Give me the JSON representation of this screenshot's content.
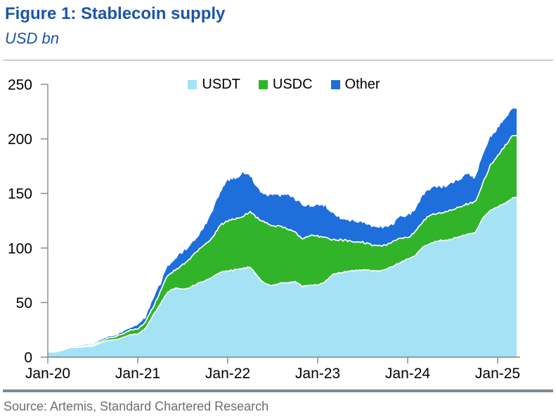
{
  "title": "Figure 1: Stablecoin supply",
  "subtitle": "USD bn",
  "source": "Source: Artemis, Standard Chartered Research",
  "colors": {
    "title_text": "#1B55A9",
    "usdt": "#A4E2F6",
    "usdc": "#31B42A",
    "other": "#1E6EDC",
    "axis": "#7C868E",
    "tick_text": "#000000",
    "separator": "#FFFFFF",
    "source_text": "#6E6E6E",
    "rule": "#7E8993"
  },
  "legend": [
    {
      "label": "USDT",
      "color": "#A4E2F6"
    },
    {
      "label": "USDC",
      "color": "#31B42A"
    },
    {
      "label": "Other",
      "color": "#1E6EDC"
    }
  ],
  "chart_data": {
    "type": "area",
    "stacked": true,
    "title": "Figure 1: Stablecoin supply",
    "ylabel": "USD bn",
    "ylim": [
      0,
      250
    ],
    "y_ticks": [
      0,
      50,
      100,
      150,
      200,
      250
    ],
    "x_start": "Jan-20",
    "x_end": "Mar-25",
    "x_cadence": "monthly",
    "x_tick_labels": [
      "Jan-20",
      "Jan-21",
      "Jan-22",
      "Jan-23",
      "Jan-24",
      "Jan-25"
    ],
    "x_tick_month_index": [
      0,
      12,
      24,
      36,
      48,
      60
    ],
    "legend_position": "top-center",
    "grid": false,
    "series": [
      {
        "name": "USDT",
        "values": [
          4.7,
          4.7,
          6.4,
          8.8,
          8.8,
          9.8,
          10.0,
          13.0,
          15.3,
          15.9,
          17.8,
          20.7,
          21.2,
          26.0,
          38.0,
          48.0,
          60.0,
          62.8,
          61.8,
          64.0,
          68.0,
          70.4,
          73.3,
          78.3,
          79.0,
          80.0,
          81.0,
          83.0,
          74.0,
          67.0,
          66.0,
          67.5,
          68.0,
          69.0,
          65.3,
          66.2,
          66.0,
          69.0,
          76.0,
          78.0,
          79.0,
          79.5,
          80.0,
          79.5,
          79.0,
          80.0,
          83.0,
          87.0,
          89.5,
          93.0,
          100.0,
          105.0,
          107.0,
          107.5,
          109.0,
          111.0,
          113.0,
          114.5,
          127.0,
          135.0,
          138.0,
          141.0,
          146.0
        ]
      },
      {
        "name": "USDC",
        "values": [
          0.5,
          0.4,
          0.7,
          0.7,
          0.7,
          0.9,
          1.1,
          1.4,
          2.2,
          2.8,
          3.5,
          4.0,
          4.5,
          5.9,
          8.0,
          11.0,
          15.0,
          17.5,
          23.0,
          26.0,
          29.0,
          32.0,
          36.0,
          42.4,
          46.0,
          47.0,
          49.0,
          50.0,
          53.0,
          56.0,
          55.0,
          52.0,
          50.0,
          46.0,
          43.0,
          44.5,
          44.0,
          41.0,
          32.0,
          29.5,
          27.5,
          26.0,
          25.0,
          24.0,
          23.0,
          22.5,
          22.5,
          22.5,
          20.0,
          22.0,
          25.0,
          26.0,
          25.5,
          25.5,
          26.0,
          27.0,
          28.0,
          27.5,
          32.0,
          40.0,
          47.0,
          53.0,
          57.0
        ]
      },
      {
        "name": "Other",
        "values": [
          0.3,
          0.3,
          0.4,
          0.5,
          0.5,
          0.6,
          0.7,
          0.9,
          1.2,
          1.3,
          1.6,
          2.2,
          4.3,
          4.6,
          6.0,
          9.0,
          9.0,
          10.0,
          11.0,
          13.0,
          15.0,
          18.0,
          26.0,
          31.0,
          36.0,
          38.0,
          38.0,
          34.0,
          26.0,
          27.0,
          28.0,
          29.0,
          30.0,
          30.0,
          31.0,
          28.0,
          28.0,
          27.5,
          24.0,
          21.0,
          19.0,
          18.0,
          17.5,
          17.0,
          16.5,
          16.5,
          17.0,
          18.5,
          19.0,
          20.0,
          23.5,
          24.5,
          24.0,
          24.0,
          24.5,
          25.0,
          25.5,
          22.0,
          26.0,
          27.0,
          24.0,
          25.0,
          26.0
        ]
      }
    ]
  }
}
